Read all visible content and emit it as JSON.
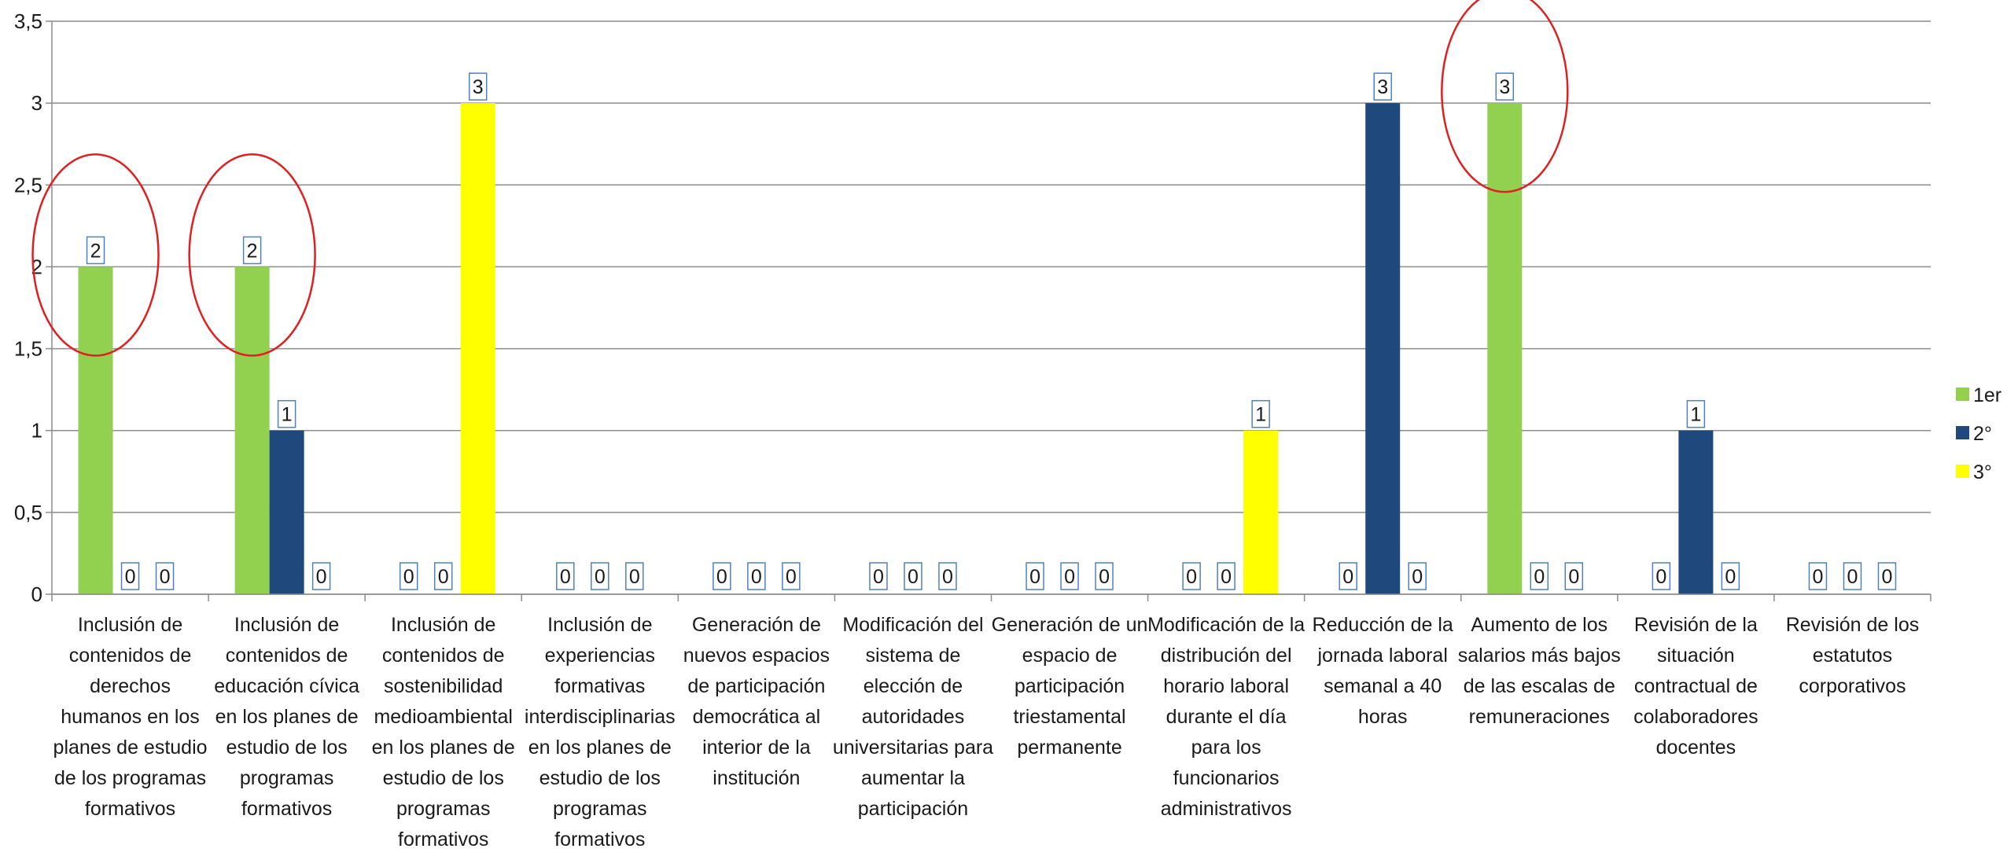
{
  "chart_data": {
    "type": "bar",
    "title": "",
    "xlabel": "",
    "ylabel": "",
    "ylim": [
      0,
      3.5
    ],
    "yticks": [
      0,
      0.5,
      1,
      1.5,
      2,
      2.5,
      3,
      3.5
    ],
    "ytick_labels": [
      "0",
      "0,5",
      "1",
      "1,5",
      "2",
      "2,5",
      "3",
      "3,5"
    ],
    "grid": true,
    "legend_position": "right",
    "categories": [
      "Inclusión de contenidos de derechos humanos en los planes de estudio de los programas formativos",
      "Inclusión de contenidos de educación cívica en los planes de estudio de los programas formativos",
      "Inclusión de contenidos de sostenibilidad medioambiental en los planes de estudio de los programas formativos",
      "Inclusión de experiencias formativas interdisciplinarias en los planes de estudio de los programas formativos",
      "Generación de nuevos espacios de participación democrática al interior de la institución",
      "Modificación del sistema de elección de autoridades universitarias para aumentar la participación",
      "Generación de un espacio de participación triestamental permanente",
      "Modificación de la distribución del horario laboral durante el día para los funcionarios administrativos",
      "Reducción de la jornada laboral semanal a 40 horas",
      "Aumento de los salarios más bajos de las escalas de remuneraciones",
      "Revisión de la situación contractual de colaboradores docentes",
      "Revisión de los estatutos corporativos"
    ],
    "category_lines": [
      [
        "Inclusión de",
        "contenidos de",
        "derechos",
        "humanos en los",
        "planes de estudio",
        "de los programas",
        "formativos"
      ],
      [
        "Inclusión de",
        "contenidos de",
        "educación cívica",
        "en los planes de",
        "estudio de los",
        "programas",
        "formativos"
      ],
      [
        "Inclusión de",
        "contenidos de",
        "sostenibilidad",
        "medioambiental",
        "en los planes de",
        "estudio de los",
        "programas",
        "formativos"
      ],
      [
        "Inclusión de",
        "experiencias",
        "formativas",
        "interdisciplinarias",
        "en los planes de",
        "estudio de los",
        "programas",
        "formativos"
      ],
      [
        "Generación de",
        "nuevos espacios",
        "de participación",
        "democrática al",
        "interior de la",
        "institución"
      ],
      [
        "Modificación del",
        "sistema de",
        "elección de",
        "autoridades",
        "universitarias para",
        "aumentar la",
        "participación"
      ],
      [
        "Generación de un",
        "espacio de",
        "participación",
        "triestamental",
        "permanente"
      ],
      [
        "Modificación de la",
        "distribución del",
        "horario laboral",
        "durante el día",
        "para los",
        "funcionarios",
        "administrativos"
      ],
      [
        "Reducción de la",
        "jornada laboral",
        "semanal a 40",
        "horas"
      ],
      [
        "Aumento de los",
        "salarios más bajos",
        "de las escalas de",
        "remuneraciones"
      ],
      [
        "Revisión de la",
        "situación",
        "contractual de",
        "colaboradores",
        "docentes"
      ],
      [
        "Revisión de los",
        "estatutos",
        "corporativos"
      ]
    ],
    "series": [
      {
        "name": "1er",
        "color": "#92d050",
        "values": [
          2,
          2,
          0,
          0,
          0,
          0,
          0,
          0,
          0,
          3,
          0,
          0
        ]
      },
      {
        "name": "2°",
        "color": "#1f497d",
        "values": [
          0,
          1,
          0,
          0,
          0,
          0,
          0,
          0,
          3,
          0,
          1,
          0
        ]
      },
      {
        "name": "3°",
        "color": "#ffff00",
        "values": [
          0,
          0,
          3,
          0,
          0,
          0,
          0,
          1,
          0,
          0,
          0,
          0
        ]
      }
    ],
    "annotations": [
      {
        "type": "ellipse",
        "category_index": 0,
        "series_index": 0,
        "color": "#e02020"
      },
      {
        "type": "ellipse",
        "category_index": 1,
        "series_index": 0,
        "color": "#e02020"
      },
      {
        "type": "ellipse",
        "category_index": 9,
        "series_index": 0,
        "color": "#e02020"
      }
    ],
    "colors": {
      "grid": "#8c8c8c",
      "axis": "#8c8c8c",
      "label_box_border": "#4f81bd",
      "annotation": "#e02020"
    }
  }
}
